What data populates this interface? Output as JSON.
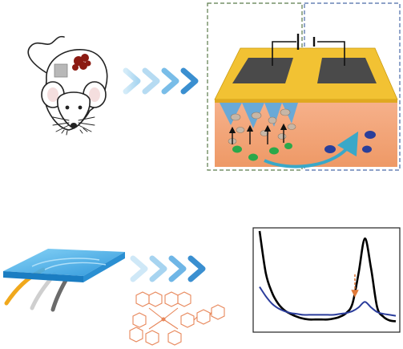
{
  "figure": {
    "panels": [
      {
        "name": "mouse-with-wound"
      },
      {
        "name": "electrode-device-cross-section"
      },
      {
        "name": "microfluidic-chip"
      },
      {
        "name": "molecular-structure"
      },
      {
        "name": "spectrum-plot"
      }
    ]
  },
  "colors": {
    "arrow_light": "#b7dcf2",
    "arrow_mid": "#7fc2ea",
    "arrow_dark": "#3a8fd0",
    "skin_top": "#f2c233",
    "tissue": "#f2a478",
    "electrode": "#555555",
    "dash_left": "#5a7a4a",
    "dash_right": "#4a6aa8",
    "dots_green": "#2aa84a",
    "dots_blue": "#2a3f9a",
    "chip": "#2e9fe0",
    "molecule": "#e8875a",
    "curve_black": "#000000",
    "curve_blue": "#2b3d9c",
    "marker": "#e07a3a"
  },
  "icons": [
    "chevron-arrow-icon",
    "battery-icon",
    "up-arrow-icon",
    "curved-arrow-icon"
  ],
  "chart_data": {
    "type": "line",
    "title": "",
    "xlabel": "",
    "ylabel": "",
    "series": [
      {
        "values": [
          1.0,
          0.55,
          0.34,
          0.22,
          0.15,
          0.11,
          0.08,
          0.06,
          0.05,
          0.05,
          0.05,
          0.05,
          0.06,
          0.08,
          0.12,
          0.22,
          0.55,
          0.92,
          0.6,
          0.18,
          0.08,
          0.04,
          0.03
        ]
      },
      {
        "values": [
          0.4,
          0.3,
          0.22,
          0.17,
          0.14,
          0.12,
          0.11,
          0.1,
          0.1,
          0.1,
          0.1,
          0.1,
          0.1,
          0.11,
          0.12,
          0.14,
          0.18,
          0.24,
          0.18,
          0.13,
          0.11,
          0.1,
          0.09
        ]
      }
    ],
    "grid": false
  }
}
